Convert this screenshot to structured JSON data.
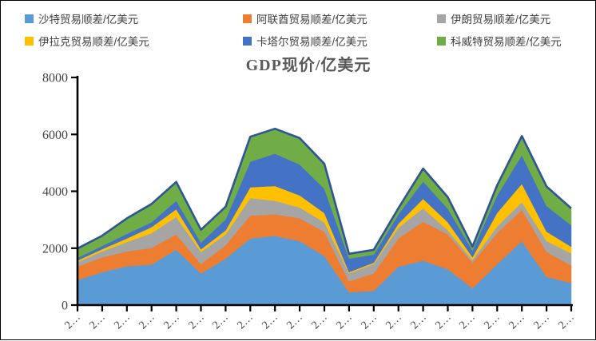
{
  "title": "GDP现价/亿美元",
  "background": "#FFFFFF",
  "border_color": "#000000",
  "legend": {
    "position": "top",
    "items": [
      {
        "label": "沙特贸易顺差/亿美元",
        "color": "#5B9BD5"
      },
      {
        "label": "阿联酋贸易顺差/亿美元",
        "color": "#ED7D31"
      },
      {
        "label": "伊朗贸易顺差/亿美元",
        "color": "#A5A5A5"
      },
      {
        "label": "伊拉克贸易顺差/亿美元",
        "color": "#FFC000"
      },
      {
        "label": "卡塔尔贸易顺差/亿美元",
        "color": "#4472C4"
      },
      {
        "label": "科威特贸易顺差/亿美元",
        "color": "#70AD47"
      }
    ]
  },
  "y_axis": {
    "labels": [
      "0",
      "2000",
      "4000",
      "6000",
      "8000"
    ],
    "values": [
      0,
      2000,
      4000,
      6000,
      8000
    ],
    "min": 0,
    "max": 8000
  },
  "x_axis": {
    "tick_display": "2…",
    "tick_count": 21
  },
  "chart_data": {
    "type": "area",
    "stacked": true,
    "title": "GDP现价/亿美元",
    "xlabel": "",
    "ylabel": "",
    "ylim": [
      0,
      8000
    ],
    "grid": false,
    "legend_position": "top",
    "top_edge_line_color": "#2E5597",
    "x_tick_labels_shown_truncated_as": "2…",
    "categories": [
      2004,
      2005,
      2006,
      2007,
      2008,
      2009,
      2010,
      2011,
      2012,
      2013,
      2014,
      2015,
      2016,
      2017,
      2018,
      2019,
      2020,
      2021,
      2022,
      2023,
      2024
    ],
    "series": [
      {
        "name": "沙特贸易顺差/亿美元",
        "color": "#5B9BD5",
        "values": [
          875,
          1160,
          1365,
          1425,
          1945,
          1110,
          1630,
          2340,
          2435,
          2245,
          1725,
          450,
          500,
          1350,
          1560,
          1255,
          590,
          1440,
          2245,
          995,
          775
        ]
      },
      {
        "name": "阿联酋贸易顺差/亿美元",
        "color": "#ED7D31",
        "values": [
          475,
          520,
          520,
          585,
          540,
          330,
          475,
          805,
          755,
          805,
          850,
          380,
          615,
          990,
          1370,
          1230,
          900,
          1090,
          1105,
          875,
          615
        ]
      },
      {
        "name": "伊朗贸易顺差/亿美元",
        "color": "#A5A5A5",
        "values": [
          160,
          210,
          330,
          520,
          615,
          425,
          380,
          615,
          475,
          380,
          330,
          285,
          330,
          380,
          470,
          140,
          95,
          235,
          265,
          380,
          425
        ]
      },
      {
        "name": "伊拉克贸易顺差/亿美元",
        "color": "#FFC000",
        "values": [
          55,
          75,
          125,
          210,
          265,
          95,
          140,
          380,
          520,
          425,
          330,
          45,
          45,
          140,
          330,
          285,
          95,
          475,
          645,
          330,
          235
        ]
      },
      {
        "name": "卡塔尔贸易顺差/亿美元",
        "color": "#4472C4",
        "values": [
          95,
          115,
          160,
          170,
          300,
          235,
          380,
          900,
          1135,
          1085,
          850,
          475,
          285,
          330,
          615,
          475,
          235,
          615,
          1010,
          900,
          755
        ]
      },
      {
        "name": "科威特贸易顺差/亿美元",
        "color": "#70AD47",
        "values": [
          300,
          330,
          520,
          615,
          635,
          425,
          425,
          850,
          850,
          900,
          850,
          140,
          140,
          190,
          425,
          380,
          115,
          330,
          645,
          660,
          565
        ]
      }
    ]
  }
}
